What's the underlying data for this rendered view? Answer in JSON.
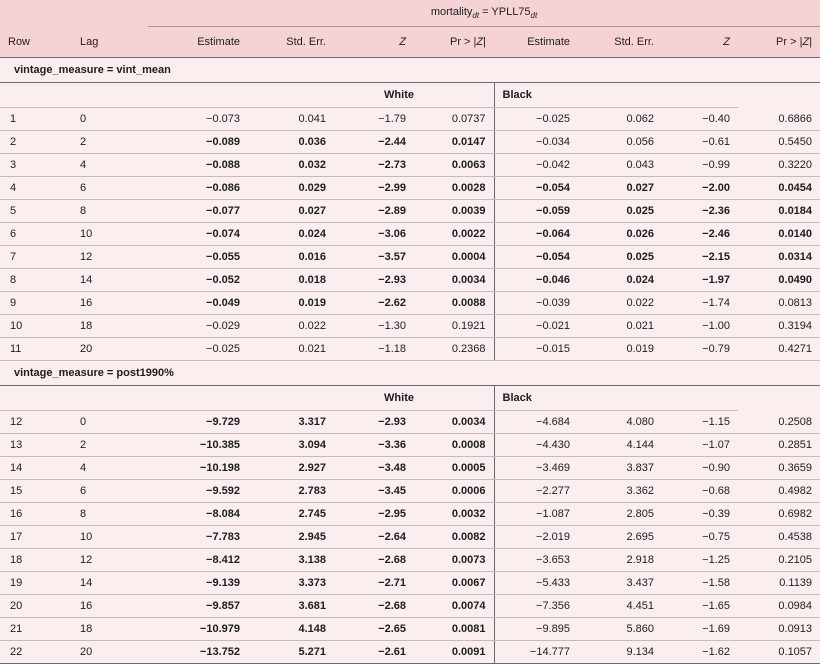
{
  "header": {
    "title_main": "mortality",
    "title_sub1": "dt",
    "title_mid": " = YPLL75",
    "title_sub2": "dt"
  },
  "columns": {
    "row": "Row",
    "lag": "Lag",
    "est": "Estimate",
    "se": "Std. Err.",
    "z": "Z",
    "p_pre": "Pr > |",
    "p_z": "Z",
    "p_post": "|"
  },
  "sections": [
    {
      "title": "vintage_measure = vint_mean",
      "white_label": "White",
      "black_label": "Black",
      "rows": [
        {
          "row": "1",
          "lag": "0",
          "w": [
            "−0.073",
            "0.041",
            "−1.79",
            "0.0737"
          ],
          "wb": false,
          "b": [
            "−0.025",
            "0.062",
            "−0.40",
            "0.6866"
          ],
          "bb": false
        },
        {
          "row": "2",
          "lag": "2",
          "w": [
            "−0.089",
            "0.036",
            "−2.44",
            "0.0147"
          ],
          "wb": true,
          "b": [
            "−0.034",
            "0.056",
            "−0.61",
            "0.5450"
          ],
          "bb": false
        },
        {
          "row": "3",
          "lag": "4",
          "w": [
            "−0.088",
            "0.032",
            "−2.73",
            "0.0063"
          ],
          "wb": true,
          "b": [
            "−0.042",
            "0.043",
            "−0.99",
            "0.3220"
          ],
          "bb": false
        },
        {
          "row": "4",
          "lag": "6",
          "w": [
            "−0.086",
            "0.029",
            "−2.99",
            "0.0028"
          ],
          "wb": true,
          "b": [
            "−0.054",
            "0.027",
            "−2.00",
            "0.0454"
          ],
          "bb": true
        },
        {
          "row": "5",
          "lag": "8",
          "w": [
            "−0.077",
            "0.027",
            "−2.89",
            "0.0039"
          ],
          "wb": true,
          "b": [
            "−0.059",
            "0.025",
            "−2.36",
            "0.0184"
          ],
          "bb": true
        },
        {
          "row": "6",
          "lag": "10",
          "w": [
            "−0.074",
            "0.024",
            "−3.06",
            "0.0022"
          ],
          "wb": true,
          "b": [
            "−0.064",
            "0.026",
            "−2.46",
            "0.0140"
          ],
          "bb": true
        },
        {
          "row": "7",
          "lag": "12",
          "w": [
            "−0.055",
            "0.016",
            "−3.57",
            "0.0004"
          ],
          "wb": true,
          "b": [
            "−0.054",
            "0.025",
            "−2.15",
            "0.0314"
          ],
          "bb": true
        },
        {
          "row": "8",
          "lag": "14",
          "w": [
            "−0.052",
            "0.018",
            "−2.93",
            "0.0034"
          ],
          "wb": true,
          "b": [
            "−0.046",
            "0.024",
            "−1.97",
            "0.0490"
          ],
          "bb": true
        },
        {
          "row": "9",
          "lag": "16",
          "w": [
            "−0.049",
            "0.019",
            "−2.62",
            "0.0088"
          ],
          "wb": true,
          "b": [
            "−0.039",
            "0.022",
            "−1.74",
            "0.0813"
          ],
          "bb": false
        },
        {
          "row": "10",
          "lag": "18",
          "w": [
            "−0.029",
            "0.022",
            "−1.30",
            "0.1921"
          ],
          "wb": false,
          "b": [
            "−0.021",
            "0.021",
            "−1.00",
            "0.3194"
          ],
          "bb": false
        },
        {
          "row": "11",
          "lag": "20",
          "w": [
            "−0.025",
            "0.021",
            "−1.18",
            "0.2368"
          ],
          "wb": false,
          "b": [
            "−0.015",
            "0.019",
            "−0.79",
            "0.4271"
          ],
          "bb": false
        }
      ]
    },
    {
      "title": "vintage_measure = post1990%",
      "white_label": "White",
      "black_label": "Black",
      "rows": [
        {
          "row": "12",
          "lag": "0",
          "w": [
            "−9.729",
            "3.317",
            "−2.93",
            "0.0034"
          ],
          "wb": true,
          "b": [
            "−4.684",
            "4.080",
            "−1.15",
            "0.2508"
          ],
          "bb": false
        },
        {
          "row": "13",
          "lag": "2",
          "w": [
            "−10.385",
            "3.094",
            "−3.36",
            "0.0008"
          ],
          "wb": true,
          "b": [
            "−4.430",
            "4.144",
            "−1.07",
            "0.2851"
          ],
          "bb": false
        },
        {
          "row": "14",
          "lag": "4",
          "w": [
            "−10.198",
            "2.927",
            "−3.48",
            "0.0005"
          ],
          "wb": true,
          "b": [
            "−3.469",
            "3.837",
            "−0.90",
            "0.3659"
          ],
          "bb": false
        },
        {
          "row": "15",
          "lag": "6",
          "w": [
            "−9.592",
            "2.783",
            "−3.45",
            "0.0006"
          ],
          "wb": true,
          "b": [
            "−2.277",
            "3.362",
            "−0.68",
            "0.4982"
          ],
          "bb": false
        },
        {
          "row": "16",
          "lag": "8",
          "w": [
            "−8.084",
            "2.745",
            "−2.95",
            "0.0032"
          ],
          "wb": true,
          "b": [
            "−1.087",
            "2.805",
            "−0.39",
            "0.6982"
          ],
          "bb": false
        },
        {
          "row": "17",
          "lag": "10",
          "w": [
            "−7.783",
            "2.945",
            "−2.64",
            "0.0082"
          ],
          "wb": true,
          "b": [
            "−2.019",
            "2.695",
            "−0.75",
            "0.4538"
          ],
          "bb": false
        },
        {
          "row": "18",
          "lag": "12",
          "w": [
            "−8.412",
            "3.138",
            "−2.68",
            "0.0073"
          ],
          "wb": true,
          "b": [
            "−3.653",
            "2.918",
            "−1.25",
            "0.2105"
          ],
          "bb": false
        },
        {
          "row": "19",
          "lag": "14",
          "w": [
            "−9.139",
            "3.373",
            "−2.71",
            "0.0067"
          ],
          "wb": true,
          "b": [
            "−5.433",
            "3.437",
            "−1.58",
            "0.1139"
          ],
          "bb": false
        },
        {
          "row": "20",
          "lag": "16",
          "w": [
            "−9.857",
            "3.681",
            "−2.68",
            "0.0074"
          ],
          "wb": true,
          "b": [
            "−7.356",
            "4.451",
            "−1.65",
            "0.0984"
          ],
          "bb": false
        },
        {
          "row": "21",
          "lag": "18",
          "w": [
            "−10.979",
            "4.148",
            "−2.65",
            "0.0081"
          ],
          "wb": true,
          "b": [
            "−9.895",
            "5.860",
            "−1.69",
            "0.0913"
          ],
          "bb": false
        },
        {
          "row": "22",
          "lag": "20",
          "w": [
            "−13.752",
            "5.271",
            "−2.61",
            "0.0091"
          ],
          "wb": true,
          "b": [
            "−14.777",
            "9.134",
            "−1.62",
            "0.1057"
          ],
          "bb": false
        }
      ]
    }
  ]
}
